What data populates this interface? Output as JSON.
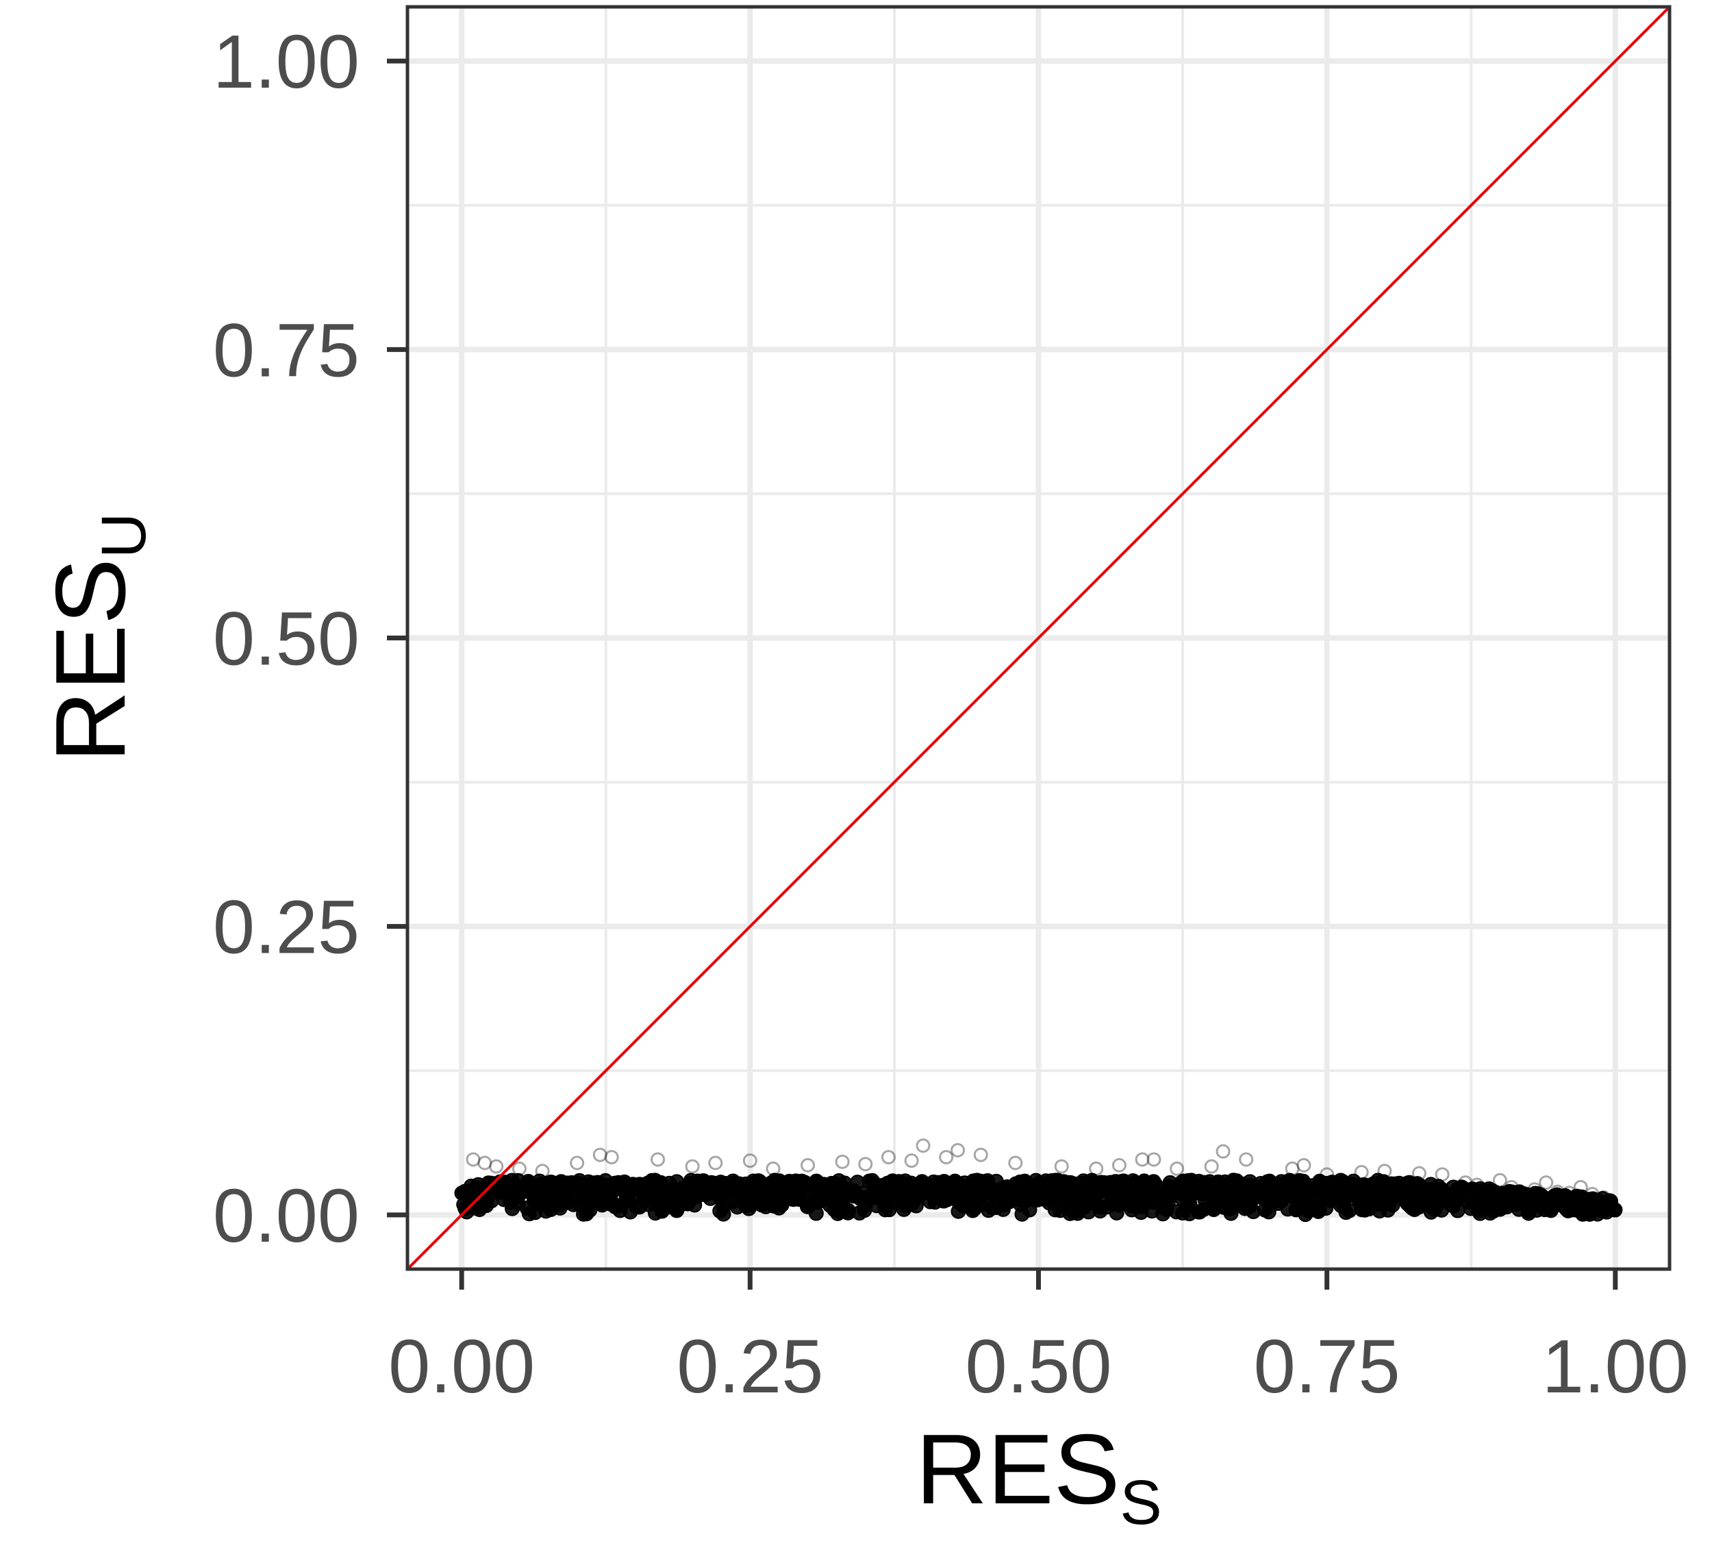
{
  "chart_data": {
    "type": "scatter",
    "xlabel": {
      "main": "RES",
      "sub": "S"
    },
    "ylabel": {
      "main": "RES",
      "sub": "U"
    },
    "xlim": [
      -0.047,
      1.047
    ],
    "ylim": [
      -0.047,
      1.047
    ],
    "x_ticks": [
      0,
      0.25,
      0.5,
      0.75,
      1
    ],
    "y_ticks": [
      0,
      0.25,
      0.5,
      0.75,
      1
    ],
    "x_tick_labels": [
      "0.00",
      "0.25",
      "0.50",
      "0.75",
      "1.00"
    ],
    "y_tick_labels": [
      "0.00",
      "0.25",
      "0.50",
      "0.75",
      "1.00"
    ],
    "grid": true,
    "reference_line": {
      "type": "identity",
      "label": "y = x",
      "color": "#e8000b"
    },
    "point_color": "#000000",
    "dense_band": {
      "x_range": [
        0,
        1
      ],
      "y_range": [
        0,
        0.03
      ],
      "note": "thousands of overlapping semi-transparent points"
    },
    "outlier_points": [
      [
        0.01,
        0.048
      ],
      [
        0.02,
        0.045
      ],
      [
        0.03,
        0.042
      ],
      [
        0.05,
        0.04
      ],
      [
        0.07,
        0.038
      ],
      [
        0.1,
        0.045
      ],
      [
        0.12,
        0.052
      ],
      [
        0.13,
        0.05
      ],
      [
        0.17,
        0.048
      ],
      [
        0.2,
        0.042
      ],
      [
        0.22,
        0.045
      ],
      [
        0.25,
        0.047
      ],
      [
        0.27,
        0.04
      ],
      [
        0.3,
        0.043
      ],
      [
        0.33,
        0.046
      ],
      [
        0.35,
        0.044
      ],
      [
        0.37,
        0.05
      ],
      [
        0.39,
        0.047
      ],
      [
        0.4,
        0.06
      ],
      [
        0.42,
        0.05
      ],
      [
        0.43,
        0.056
      ],
      [
        0.45,
        0.052
      ],
      [
        0.48,
        0.045
      ],
      [
        0.52,
        0.042
      ],
      [
        0.55,
        0.04
      ],
      [
        0.57,
        0.043
      ],
      [
        0.59,
        0.048
      ],
      [
        0.6,
        0.048
      ],
      [
        0.62,
        0.04
      ],
      [
        0.65,
        0.042
      ],
      [
        0.66,
        0.055
      ],
      [
        0.68,
        0.048
      ],
      [
        0.72,
        0.04
      ],
      [
        0.73,
        0.043
      ],
      [
        0.75,
        0.035
      ],
      [
        0.78,
        0.037
      ],
      [
        0.8,
        0.038
      ],
      [
        0.83,
        0.036
      ],
      [
        0.85,
        0.035
      ],
      [
        0.87,
        0.028
      ],
      [
        0.88,
        0.026
      ],
      [
        0.9,
        0.03
      ],
      [
        0.91,
        0.024
      ],
      [
        0.93,
        0.022
      ],
      [
        0.94,
        0.028
      ],
      [
        0.95,
        0.02
      ],
      [
        0.96,
        0.019
      ],
      [
        0.97,
        0.024
      ],
      [
        0.98,
        0.018
      ],
      [
        0.99,
        0.015
      ]
    ]
  }
}
